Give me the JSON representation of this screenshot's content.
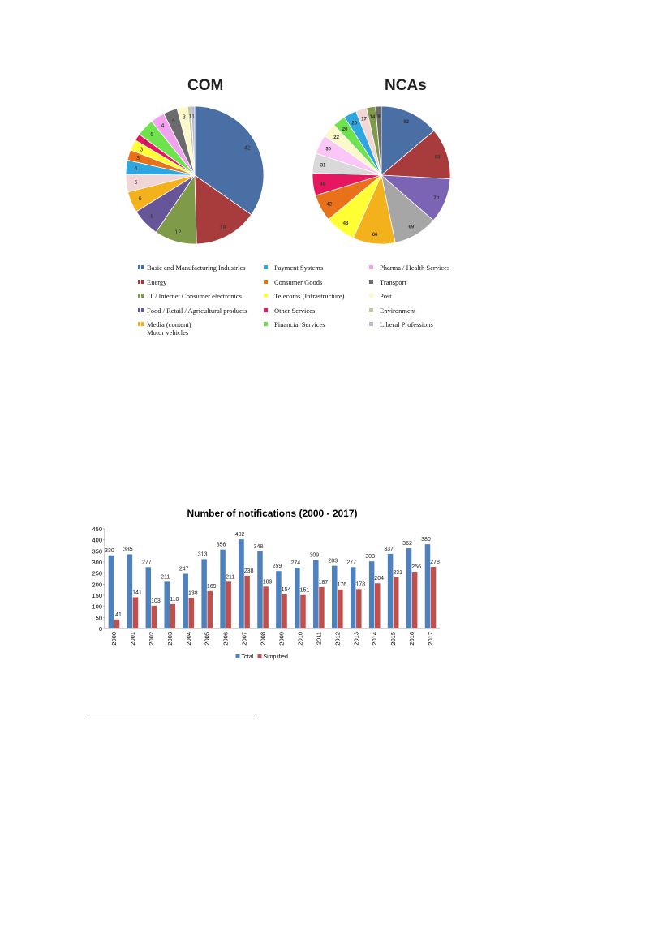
{
  "chart_data": [
    {
      "type": "pie",
      "title": "COM",
      "slices": [
        {
          "category": "Basic and Manufacturing Industries",
          "value": 42,
          "color": "#4a6fa5"
        },
        {
          "category": "Energy",
          "value": 18,
          "color": "#a83c3c"
        },
        {
          "category": "IT / Internet Consumer electronics",
          "value": 12,
          "color": "#7f9a48"
        },
        {
          "category": "Food / Retail / Agricultural products",
          "value": 8,
          "color": "#67559a"
        },
        {
          "category": "Media (content) Motor vehicles",
          "value": 6,
          "color": "#f3b21b"
        },
        {
          "category": "Liberal Professions",
          "value": 5,
          "color": "#f2d5d5"
        },
        {
          "category": "Payment Systems",
          "value": 4,
          "color": "#2ea6df"
        },
        {
          "category": "Consumer Goods",
          "value": 3,
          "color": "#e8711a"
        },
        {
          "category": "Telecoms (Infrastructure)",
          "value": 3,
          "color": "#ffff33"
        },
        {
          "category": "Other Services",
          "value": 2,
          "color": "#e6175e"
        },
        {
          "category": "Financial Services",
          "value": 5,
          "color": "#6ee34d"
        },
        {
          "category": "Pharma / Health Services",
          "value": 4,
          "color": "#f1a3f0"
        },
        {
          "category": "Transport",
          "value": 4,
          "color": "#6b6b6b"
        },
        {
          "category": "Post",
          "value": 3,
          "color": "#fbf8c9"
        },
        {
          "category": "Environment",
          "value": 1,
          "color": "#c2c8a0"
        },
        {
          "category": "Liberal Professions",
          "value": 1,
          "color": "#b9b9d3"
        }
      ],
      "labels": [
        "42",
        "18",
        "12",
        "8",
        "6",
        "5",
        "4",
        "3",
        "3",
        "2",
        "5",
        "4",
        "4",
        "3",
        "1",
        "1"
      ]
    },
    {
      "type": "pie",
      "title": "NCAs",
      "slices": [
        {
          "category": "Basic and Manufacturing Industries",
          "value": 92,
          "color": "#4a6fa5"
        },
        {
          "category": "Energy",
          "value": 80,
          "color": "#a83c3c"
        },
        {
          "category": "Food / Retail / Agricultural products",
          "value": 70,
          "color": "#7b64b3"
        },
        {
          "category": "Environment",
          "value": 69,
          "color": "#a6a6a6"
        },
        {
          "category": "Media (content) Motor vehicles",
          "value": 66,
          "color": "#f3b21b"
        },
        {
          "category": "Telecoms (Infrastructure)",
          "value": 48,
          "color": "#ffff33"
        },
        {
          "category": "Consumer Goods",
          "value": 42,
          "color": "#e8711a"
        },
        {
          "category": "Other Services",
          "value": 35,
          "color": "#e6175e"
        },
        {
          "category": "Liberal Professions",
          "value": 31,
          "color": "#d9d9d9"
        },
        {
          "category": "Pharma / Health Services",
          "value": 30,
          "color": "#f9c6f5"
        },
        {
          "category": "Post",
          "value": 22,
          "color": "#fbf8c9"
        },
        {
          "category": "Financial Services",
          "value": 20,
          "color": "#6ee34d"
        },
        {
          "category": "Payment Systems",
          "value": 20,
          "color": "#2ea6df"
        },
        {
          "category": "Liberal Professions",
          "value": 17,
          "color": "#f2d5d5"
        },
        {
          "category": "IT / Internet Consumer electronics",
          "value": 14,
          "color": "#7f9a48"
        },
        {
          "category": "Transport",
          "value": 9,
          "color": "#6b6b6b"
        }
      ],
      "labels": [
        "92",
        "80",
        "70",
        "69",
        "66",
        "48",
        "42",
        "35",
        "31",
        "30",
        "22",
        "20",
        "20",
        "17",
        "14",
        "9"
      ]
    },
    {
      "type": "bar",
      "title": "Number of notifications (2000 - 2017)",
      "categories": [
        "2000",
        "2001",
        "2002",
        "2003",
        "2004",
        "2005",
        "2006",
        "2007",
        "2008",
        "2009",
        "2010",
        "2011",
        "2012",
        "2013",
        "2014",
        "2015",
        "2016",
        "2017"
      ],
      "series": [
        {
          "name": "Total",
          "color": "#4f81bd",
          "values": [
            330,
            335,
            277,
            211,
            247,
            313,
            356,
            402,
            348,
            259,
            274,
            309,
            283,
            277,
            303,
            337,
            362,
            380
          ]
        },
        {
          "name": "Simplified",
          "color": "#c0504d",
          "values": [
            41,
            141,
            103,
            110,
            138,
            169,
            211,
            238,
            189,
            154,
            151,
            187,
            176,
            178,
            204,
            231,
            256,
            278
          ]
        }
      ],
      "ylim": [
        0,
        450
      ],
      "yticks": [
        "0",
        "50",
        "100",
        "150",
        "200",
        "250",
        "300",
        "350",
        "400",
        "450"
      ],
      "grid": false,
      "legend_position": "bottom"
    }
  ],
  "legend": {
    "items": [
      {
        "label": "Basic and Manufacturing Industries",
        "color": "#4a6fa5"
      },
      {
        "label": "Energy",
        "color": "#a83c3c"
      },
      {
        "label": "IT / Internet Consumer electronics",
        "color": "#7f9a48"
      },
      {
        "label": "Food / Retail / Agricultural products",
        "color": "#67559a"
      },
      {
        "label": "Media (content)\nMotor vehicles",
        "color": "#f3b21b"
      },
      {
        "label": "Payment Systems",
        "color": "#2ea6df"
      },
      {
        "label": "Consumer Goods",
        "color": "#e8711a"
      },
      {
        "label": "Telecoms (Infrastructure)",
        "color": "#ffff33"
      },
      {
        "label": "Other Services",
        "color": "#e6175e"
      },
      {
        "label": "Financial Services",
        "color": "#6ee34d"
      },
      {
        "label": "Pharma / Health Services",
        "color": "#f1a3f0"
      },
      {
        "label": "Transport",
        "color": "#6b6b6b"
      },
      {
        "label": "Post",
        "color": "#fbf8c9"
      },
      {
        "label": "Environment",
        "color": "#c2c8a0"
      },
      {
        "label": "Liberal Professions",
        "color": "#b9b9d3"
      }
    ]
  }
}
